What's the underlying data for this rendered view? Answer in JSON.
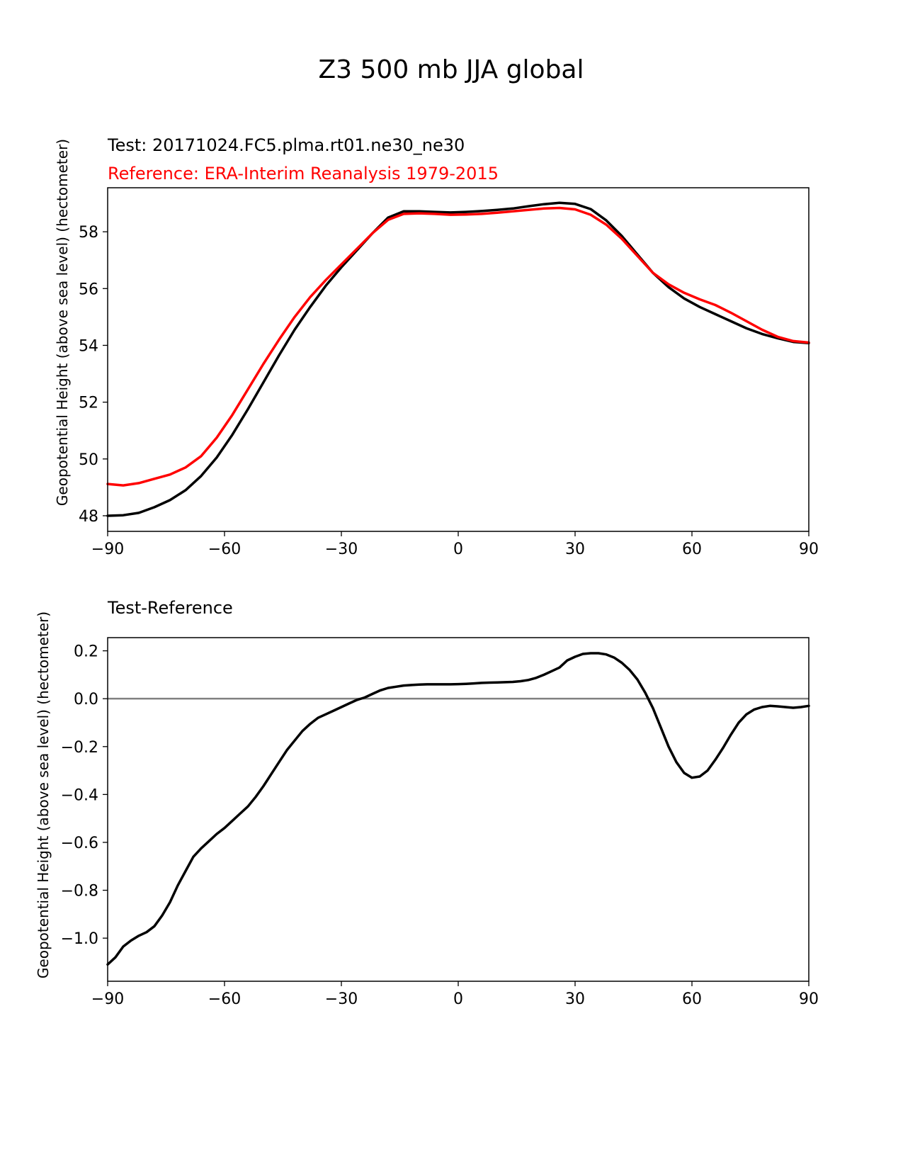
{
  "figure": {
    "title": "Z3 500 mb JJA global"
  },
  "chart_data": [
    {
      "type": "line",
      "subtitle_test": "Test: 20171024.FC5.plma.rt01.ne30_ne30",
      "subtitle_ref": "Reference: ERA-Interim Reanalysis 1979-2015",
      "xlabel": "",
      "ylabel": "Geopotential Height (above sea level) (hectometer)",
      "xlim": [
        -90,
        90
      ],
      "ylim": [
        47.45,
        59.55
      ],
      "xticks": [
        -90,
        -60,
        -30,
        0,
        30,
        60,
        90
      ],
      "xtick_labels": [
        "−90",
        "−60",
        "−30",
        "0",
        "30",
        "60",
        "90"
      ],
      "yticks": [
        48,
        50,
        52,
        54,
        56,
        58
      ],
      "ytick_labels": [
        "48",
        "50",
        "52",
        "54",
        "56",
        "58"
      ],
      "series": [
        {
          "name": "Test",
          "color": "#000000",
          "x": [
            -90,
            -86,
            -82,
            -78,
            -74,
            -70,
            -66,
            -62,
            -58,
            -54,
            -50,
            -46,
            -42,
            -38,
            -34,
            -30,
            -26,
            -22,
            -18,
            -14,
            -10,
            -6,
            -2,
            2,
            6,
            10,
            14,
            18,
            22,
            26,
            30,
            34,
            38,
            42,
            46,
            50,
            54,
            58,
            62,
            66,
            70,
            74,
            78,
            82,
            86,
            90
          ],
          "values": [
            48.0,
            48.02,
            48.1,
            48.3,
            48.55,
            48.9,
            49.4,
            50.05,
            50.85,
            51.75,
            52.7,
            53.65,
            54.55,
            55.35,
            56.1,
            56.75,
            57.35,
            57.95,
            58.5,
            58.72,
            58.72,
            58.7,
            58.68,
            58.7,
            58.73,
            58.77,
            58.82,
            58.9,
            58.97,
            59.02,
            58.98,
            58.8,
            58.4,
            57.85,
            57.2,
            56.55,
            56.05,
            55.65,
            55.35,
            55.1,
            54.85,
            54.6,
            54.4,
            54.25,
            54.12,
            54.08
          ]
        },
        {
          "name": "Reference",
          "color": "#ff0000",
          "x": [
            -90,
            -86,
            -82,
            -78,
            -74,
            -70,
            -66,
            -62,
            -58,
            -54,
            -50,
            -46,
            -42,
            -38,
            -34,
            -30,
            -26,
            -22,
            -18,
            -14,
            -10,
            -6,
            -2,
            2,
            6,
            10,
            14,
            18,
            22,
            26,
            30,
            34,
            38,
            42,
            46,
            50,
            54,
            58,
            62,
            66,
            70,
            74,
            78,
            82,
            86,
            90
          ],
          "values": [
            49.12,
            49.07,
            49.15,
            49.3,
            49.45,
            49.7,
            50.1,
            50.75,
            51.55,
            52.45,
            53.35,
            54.2,
            55.0,
            55.7,
            56.3,
            56.85,
            57.4,
            57.95,
            58.42,
            58.63,
            58.65,
            58.63,
            58.6,
            58.61,
            58.63,
            58.67,
            58.72,
            58.77,
            58.82,
            58.84,
            58.79,
            58.6,
            58.25,
            57.75,
            57.15,
            56.55,
            56.15,
            55.85,
            55.62,
            55.42,
            55.15,
            54.85,
            54.55,
            54.3,
            54.15,
            54.1
          ]
        }
      ]
    },
    {
      "type": "line",
      "subtitle": "Test-Reference",
      "xlabel": "",
      "ylabel": "Geopotential Height (above sea level) (hectometer)",
      "xlim": [
        -90,
        90
      ],
      "ylim": [
        -1.18,
        0.255
      ],
      "xticks": [
        -90,
        -60,
        -30,
        0,
        30,
        60,
        90
      ],
      "xtick_labels": [
        "−90",
        "−60",
        "−30",
        "0",
        "30",
        "60",
        "90"
      ],
      "yticks": [
        -1.0,
        -0.8,
        -0.6,
        -0.4,
        -0.2,
        0.0,
        0.2
      ],
      "ytick_labels": [
        "−1.0",
        "−0.8",
        "−0.6",
        "−0.4",
        "−0.2",
        "0.0",
        "0.2"
      ],
      "zero_line": {
        "y": 0,
        "color": "#808080"
      },
      "series": [
        {
          "name": "Test-Reference",
          "color": "#000000",
          "x": [
            -90,
            -88,
            -86,
            -84,
            -82,
            -80,
            -78,
            -76,
            -74,
            -72,
            -70,
            -68,
            -66,
            -64,
            -62,
            -60,
            -58,
            -56,
            -54,
            -52,
            -50,
            -48,
            -46,
            -44,
            -42,
            -40,
            -38,
            -36,
            -34,
            -32,
            -30,
            -28,
            -26,
            -24,
            -22,
            -20,
            -18,
            -16,
            -14,
            -12,
            -10,
            -8,
            -6,
            -4,
            -2,
            0,
            2,
            4,
            6,
            8,
            10,
            12,
            14,
            16,
            18,
            20,
            22,
            24,
            26,
            28,
            30,
            32,
            34,
            36,
            38,
            40,
            42,
            44,
            46,
            48,
            50,
            52,
            54,
            56,
            58,
            60,
            62,
            64,
            66,
            68,
            70,
            72,
            74,
            76,
            78,
            80,
            82,
            84,
            86,
            88,
            90
          ],
          "values": [
            -1.11,
            -1.08,
            -1.035,
            -1.01,
            -0.99,
            -0.975,
            -0.95,
            -0.905,
            -0.85,
            -0.78,
            -0.72,
            -0.66,
            -0.625,
            -0.595,
            -0.565,
            -0.54,
            -0.51,
            -0.48,
            -0.45,
            -0.41,
            -0.365,
            -0.315,
            -0.265,
            -0.215,
            -0.175,
            -0.135,
            -0.105,
            -0.08,
            -0.065,
            -0.05,
            -0.035,
            -0.02,
            -0.005,
            0.005,
            0.02,
            0.035,
            0.045,
            0.05,
            0.055,
            0.057,
            0.059,
            0.06,
            0.06,
            0.06,
            0.06,
            0.061,
            0.062,
            0.064,
            0.066,
            0.067,
            0.068,
            0.069,
            0.07,
            0.073,
            0.078,
            0.087,
            0.1,
            0.115,
            0.13,
            0.16,
            0.175,
            0.187,
            0.19,
            0.19,
            0.185,
            0.172,
            0.15,
            0.12,
            0.08,
            0.025,
            -0.04,
            -0.12,
            -0.2,
            -0.265,
            -0.31,
            -0.33,
            -0.325,
            -0.3,
            -0.255,
            -0.205,
            -0.15,
            -0.1,
            -0.065,
            -0.045,
            -0.035,
            -0.03,
            -0.032,
            -0.035,
            -0.038,
            -0.035,
            -0.03
          ]
        }
      ]
    }
  ]
}
